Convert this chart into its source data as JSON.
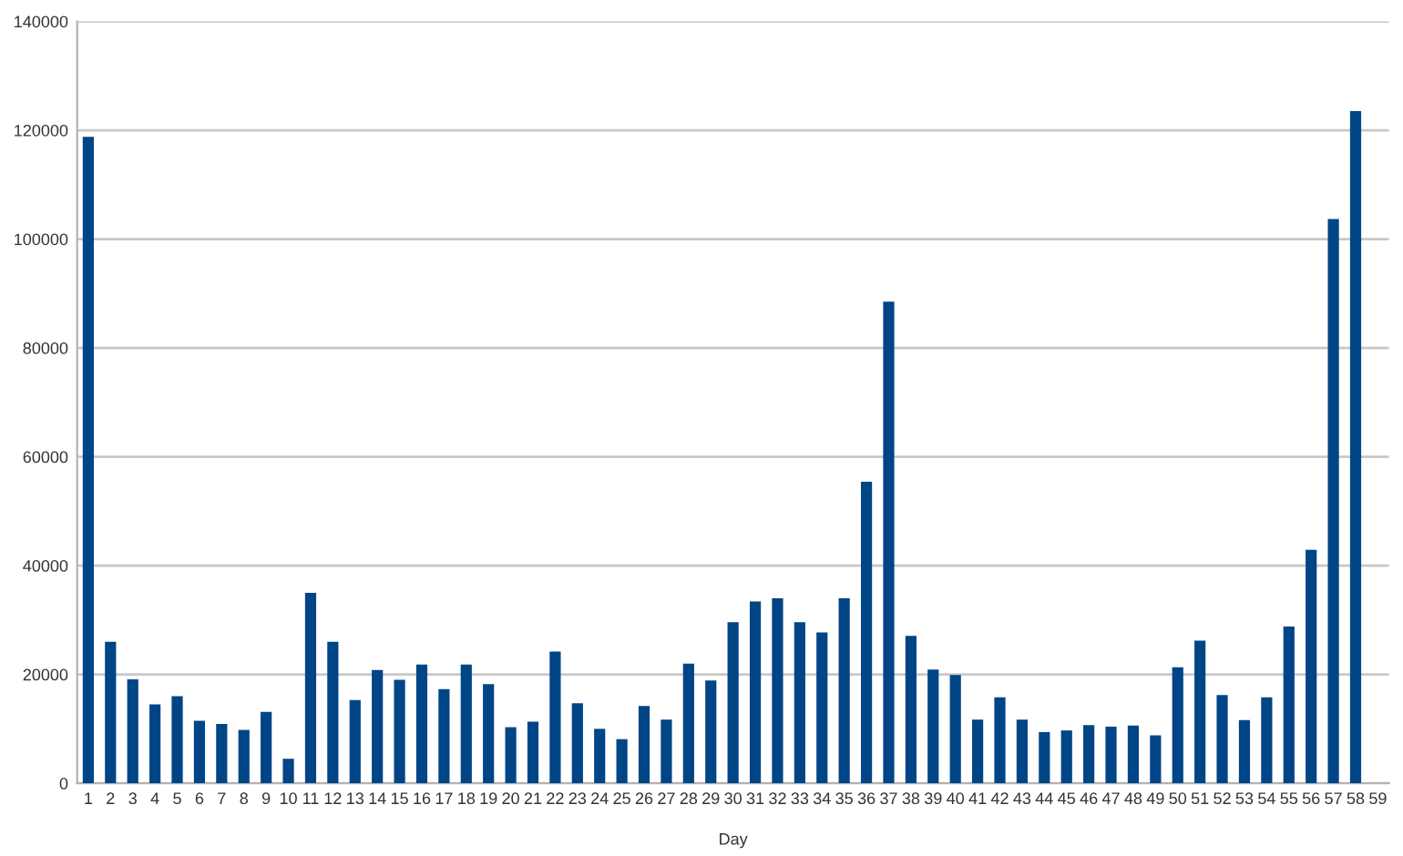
{
  "chart_data": {
    "type": "bar",
    "xlabel": "Day",
    "categories": [
      "1",
      "2",
      "3",
      "4",
      "5",
      "6",
      "7",
      "8",
      "9",
      "10",
      "11",
      "12",
      "13",
      "14",
      "15",
      "16",
      "17",
      "18",
      "19",
      "20",
      "21",
      "22",
      "23",
      "24",
      "25",
      "26",
      "27",
      "28",
      "29",
      "30",
      "31",
      "32",
      "33",
      "34",
      "35",
      "36",
      "37",
      "38",
      "39",
      "40",
      "41",
      "42",
      "43",
      "44",
      "45",
      "46",
      "47",
      "48",
      "49",
      "50",
      "51",
      "52",
      "53",
      "54",
      "55",
      "56",
      "57",
      "58",
      "59"
    ],
    "values": [
      118800,
      26000,
      19100,
      14500,
      16000,
      11500,
      10900,
      9800,
      13100,
      4500,
      35000,
      26000,
      15300,
      20800,
      19000,
      21800,
      17300,
      21800,
      18200,
      10300,
      11300,
      24200,
      14700,
      10000,
      8100,
      14200,
      11700,
      22000,
      18900,
      29600,
      33400,
      34000,
      29600,
      27700,
      34000,
      55400,
      88500,
      27100,
      20900,
      19900,
      11700,
      15800,
      11700,
      9400,
      9700,
      10700,
      10400,
      10600,
      8800,
      21300,
      26200,
      16200,
      11600,
      15800,
      28800,
      42900,
      103700,
      123500,
      null
    ],
    "color": "#004586",
    "ylim": [
      0,
      140000
    ],
    "yticks": [
      0,
      20000,
      40000,
      60000,
      80000,
      100000,
      120000,
      140000
    ],
    "grid": "y",
    "legend": false
  }
}
